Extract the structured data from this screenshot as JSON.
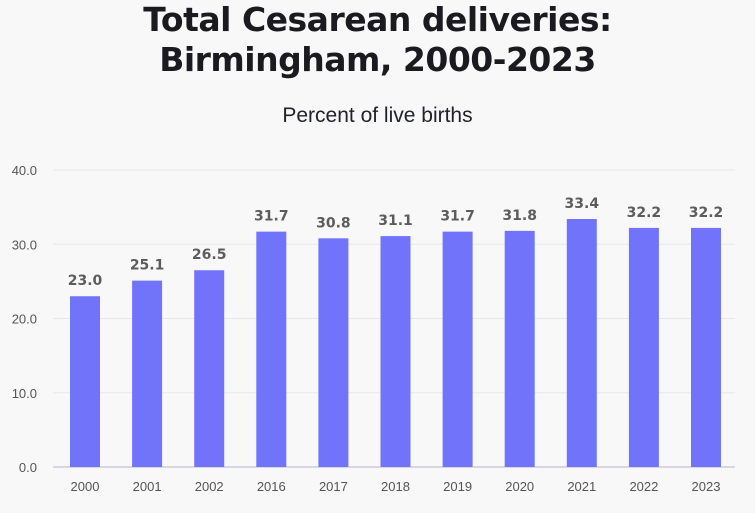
{
  "chart_data": {
    "type": "bar",
    "title_lines": [
      "Total Cesarean deliveries:",
      "Birmingham, 2000-2023"
    ],
    "subtitle": "Percent of live births",
    "categories": [
      "2000",
      "2001",
      "2002",
      "2016",
      "2017",
      "2018",
      "2019",
      "2020",
      "2021",
      "2022",
      "2023"
    ],
    "values": [
      23.0,
      25.1,
      26.5,
      31.7,
      30.8,
      31.1,
      31.7,
      31.8,
      33.4,
      32.2,
      32.2
    ],
    "data_labels": [
      "23.0",
      "25.1",
      "26.5",
      "31.7",
      "30.8",
      "31.1",
      "31.7",
      "31.8",
      "33.4",
      "32.2",
      "32.2"
    ],
    "yticks": [
      "0.0",
      "10.0",
      "20.0",
      "30.0",
      "40.0"
    ],
    "ylim": [
      0,
      40
    ],
    "grid": true,
    "bar_color": "#7174fb",
    "xlabel": "",
    "ylabel": ""
  }
}
